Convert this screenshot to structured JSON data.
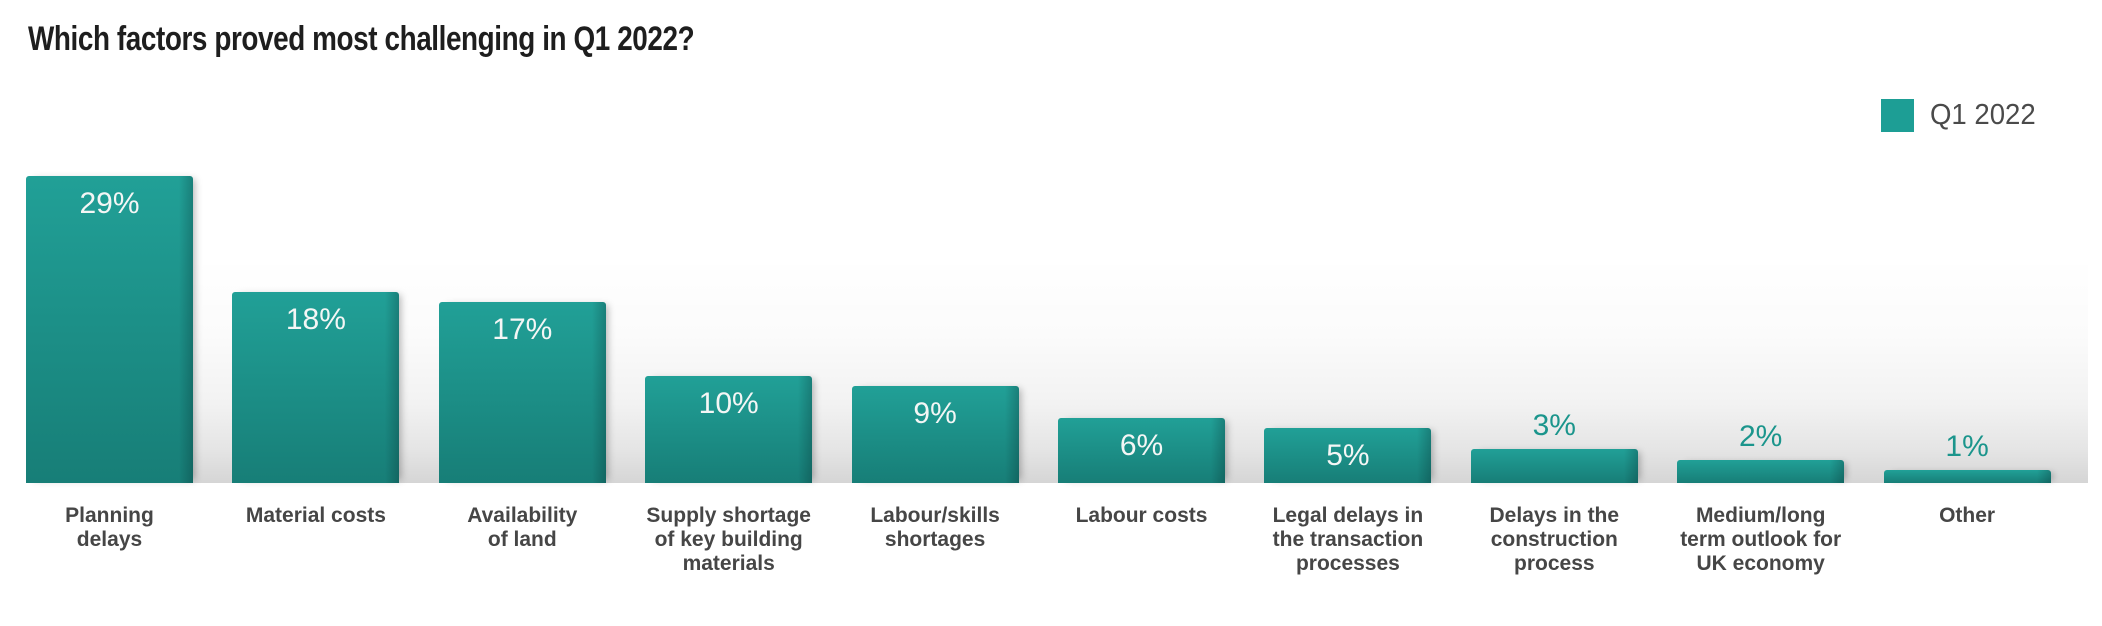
{
  "title": "Which factors proved most challenging in Q1 2022?",
  "legend": {
    "label": "Q1 2022"
  },
  "colors": {
    "bar_top": "#21a097",
    "bar_bottom": "#177e77",
    "legend_swatch": "#1d9e95",
    "value_label_inside": "#f4f6f5",
    "value_label_above": "#1b958c",
    "category_label": "#464646",
    "title": "#1e1e1e"
  },
  "chart_data": {
    "type": "bar",
    "title": "Which factors proved most challenging in Q1 2022?",
    "xlabel": "",
    "ylabel": "",
    "ylim": [
      0,
      30
    ],
    "grid": false,
    "legend_position": "top-right",
    "series_name": "Q1 2022",
    "categories": [
      "Planning delays",
      "Material costs",
      "Availability of land",
      "Supply shortage of key building materials",
      "Labour/skills shortages",
      "Labour costs",
      "Legal delays in the transaction processes",
      "Delays in the construction process",
      "Medium/long term outlook for UK economy",
      "Other"
    ],
    "values": [
      29,
      18,
      17,
      10,
      9,
      6,
      5,
      3,
      2,
      1
    ],
    "items": [
      {
        "value": 29,
        "value_label": "29%",
        "label_lines": [
          "Planning",
          "delays"
        ]
      },
      {
        "value": 18,
        "value_label": "18%",
        "label_lines": [
          "Material costs"
        ]
      },
      {
        "value": 17,
        "value_label": "17%",
        "label_lines": [
          "Availability",
          "of land"
        ]
      },
      {
        "value": 10,
        "value_label": "10%",
        "label_lines": [
          "Supply shortage",
          "of key building",
          "materials"
        ]
      },
      {
        "value": 9,
        "value_label": "9%",
        "label_lines": [
          "Labour/skills",
          "shortages"
        ]
      },
      {
        "value": 6,
        "value_label": "6%",
        "label_lines": [
          "Labour costs"
        ]
      },
      {
        "value": 5,
        "value_label": "5%",
        "label_lines": [
          "Legal delays in",
          "the transaction",
          "processes"
        ]
      },
      {
        "value": 3,
        "value_label": "3%",
        "label_lines": [
          "Delays in the",
          "construction",
          "process"
        ]
      },
      {
        "value": 2,
        "value_label": "2%",
        "label_lines": [
          "Medium/long",
          "term outlook for",
          "UK economy"
        ]
      },
      {
        "value": 1,
        "value_label": "1%",
        "label_lines": [
          "Other"
        ]
      }
    ]
  }
}
